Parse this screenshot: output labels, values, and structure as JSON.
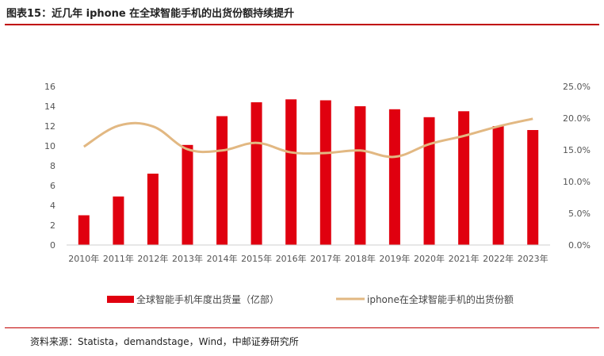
{
  "header": {
    "title": "图表15：近几年 iphone 在全球智能手机的出货份额持续提升"
  },
  "footer": {
    "source": "资料来源：Statista，demandstage，Wind，中邮证券研究所"
  },
  "colors": {
    "bar": "#e0000f",
    "line": "#e2b882",
    "rule": "#c00000"
  },
  "chart_data": {
    "type": "bar",
    "title": "",
    "categories": [
      "2010年",
      "2011年",
      "2012年",
      "2013年",
      "2014年",
      "2015年",
      "2016年",
      "2017年",
      "2018年",
      "2019年",
      "2020年",
      "2021年",
      "2022年",
      "2023年"
    ],
    "y_left": {
      "ticks": [
        "0",
        "2",
        "4",
        "6",
        "8",
        "10",
        "12",
        "14",
        "16"
      ],
      "lim": [
        0,
        16
      ]
    },
    "y_right": {
      "ticks": [
        "0.0%",
        "5.0%",
        "10.0%",
        "15.0%",
        "20.0%",
        "25.0%"
      ],
      "lim": [
        0,
        25
      ]
    },
    "series": [
      {
        "name": "全球智能手机年度出货量（亿部）",
        "type": "bar",
        "axis": "left",
        "values": [
          3.0,
          4.9,
          7.2,
          10.1,
          13.0,
          14.4,
          14.7,
          14.6,
          14.0,
          13.7,
          12.9,
          13.5,
          12.0,
          11.6
        ]
      },
      {
        "name": "iphone在全球智能手机的出货份额",
        "type": "line",
        "axis": "right",
        "values": [
          15.5,
          18.8,
          18.7,
          15.1,
          14.9,
          16.1,
          14.6,
          14.5,
          14.9,
          13.9,
          15.9,
          17.2,
          18.7,
          19.9
        ]
      }
    ],
    "grid": false,
    "legend": "bottom"
  }
}
